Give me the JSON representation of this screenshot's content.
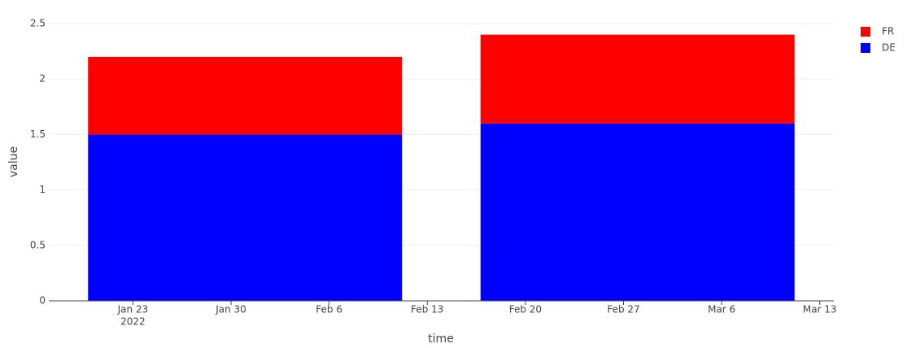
{
  "chart_data": {
    "type": "bar",
    "barmode": "stack",
    "x": [
      "2022-01-31",
      "2022-02-28"
    ],
    "series": [
      {
        "name": "DE",
        "color": "#0000ff",
        "values": [
          1.5,
          1.6
        ]
      },
      {
        "name": "FR",
        "color": "#ff0000",
        "values": [
          0.7,
          0.8
        ]
      }
    ],
    "x_label": "time",
    "y_label": "value",
    "xlim": [
      "2022-01-17",
      "2022-03-14"
    ],
    "xticks": [
      {
        "value": "2022-01-23",
        "label": "Jan 23"
      },
      {
        "value": "2022-01-30",
        "label": "Jan 30"
      },
      {
        "value": "2022-02-06",
        "label": "Feb 6"
      },
      {
        "value": "2022-02-13",
        "label": "Feb 13"
      },
      {
        "value": "2022-02-20",
        "label": "Feb 20"
      },
      {
        "value": "2022-02-27",
        "label": "Feb 27"
      },
      {
        "value": "2022-03-06",
        "label": "Mar 6"
      },
      {
        "value": "2022-03-13",
        "label": "Mar 13"
      }
    ],
    "xtick_year": "2022",
    "ylim": [
      0,
      2.5
    ],
    "yticks": [
      0,
      0.5,
      1,
      1.5,
      2,
      2.5
    ],
    "grid": true,
    "legend": "top-right"
  }
}
